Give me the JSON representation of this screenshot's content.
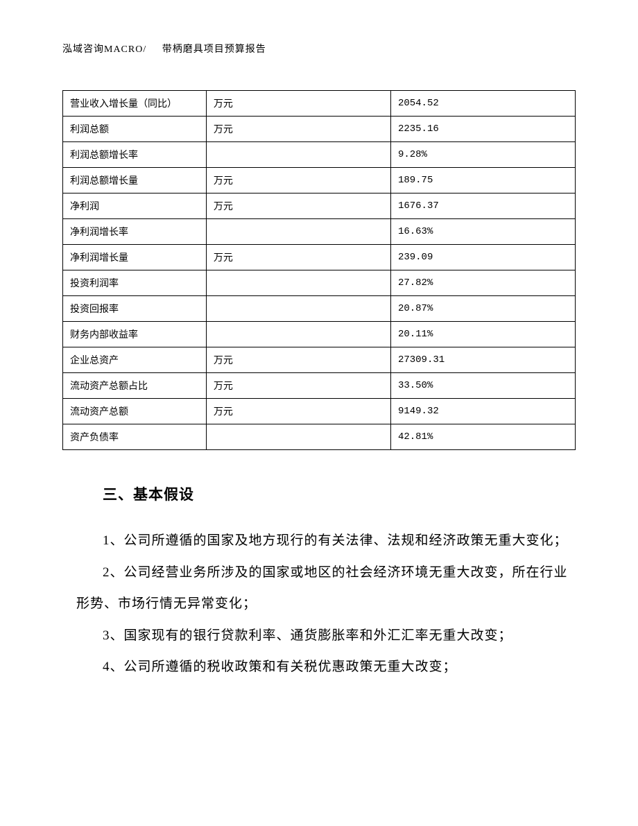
{
  "header": {
    "left": "泓域咨询MACRO/",
    "right": "带柄磨具项目预算报告"
  },
  "table": {
    "type": "table",
    "columns": [
      "label",
      "unit",
      "value"
    ],
    "col_widths_pct": [
      28,
      36,
      36
    ],
    "border_color": "#000000",
    "background_color": "#ffffff",
    "font_size_pt": 10.5,
    "rows": [
      {
        "label": "营业收入增长量（同比）",
        "unit": "万元",
        "value": "2054.52"
      },
      {
        "label": "利润总额",
        "unit": "万元",
        "value": "2235.16"
      },
      {
        "label": "利润总额增长率",
        "unit": "",
        "value": "9.28%"
      },
      {
        "label": "利润总额增长量",
        "unit": "万元",
        "value": "189.75"
      },
      {
        "label": "净利润",
        "unit": "万元",
        "value": "1676.37"
      },
      {
        "label": "净利润增长率",
        "unit": "",
        "value": "16.63%"
      },
      {
        "label": "净利润增长量",
        "unit": "万元",
        "value": "239.09"
      },
      {
        "label": "投资利润率",
        "unit": "",
        "value": "27.82%"
      },
      {
        "label": "投资回报率",
        "unit": "",
        "value": "20.87%"
      },
      {
        "label": "财务内部收益率",
        "unit": "",
        "value": "20.11%"
      },
      {
        "label": "企业总资产",
        "unit": "万元",
        "value": "27309.31"
      },
      {
        "label": "流动资产总额占比",
        "unit": "万元",
        "value": "33.50%"
      },
      {
        "label": "流动资产总额",
        "unit": "万元",
        "value": "9149.32"
      },
      {
        "label": "资产负债率",
        "unit": "",
        "value": "42.81%"
      }
    ]
  },
  "section": {
    "heading": "三、基本假设",
    "paragraphs": [
      "1、公司所遵循的国家及地方现行的有关法律、法规和经济政策无重大变化；",
      "2、公司经营业务所涉及的国家或地区的社会经济环境无重大改变，所在行业形势、市场行情无异常变化；",
      "3、国家现有的银行贷款利率、通货膨胀率和外汇汇率无重大改变；",
      "4、公司所遵循的税收政策和有关税优惠政策无重大改变；"
    ]
  }
}
